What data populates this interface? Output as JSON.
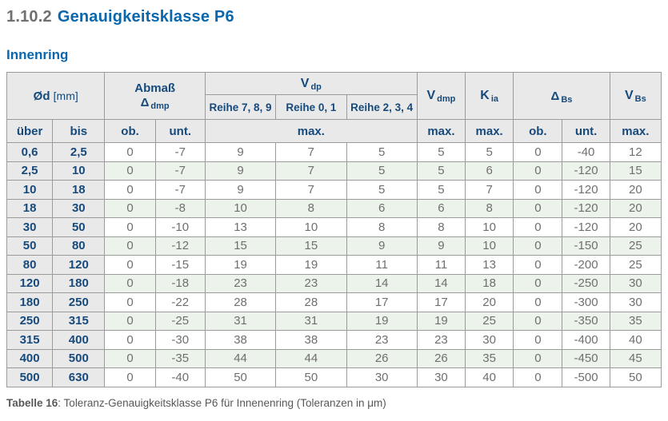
{
  "page": {
    "section_number": "1.10.2",
    "section_title": "Genauigkeitsklasse P6",
    "subtitle": "Innenring",
    "caption_label": "Tabelle 16",
    "caption_text": ": Toleranz-Genauigkeitsklasse P6 für Innenenring (Toleranzen in μm)"
  },
  "colors": {
    "title_blue": "#0a67ad",
    "table_header_blue": "#174a7c",
    "header_bg_gray": "#e9e9e9",
    "row_alt_green": "#ecf3ea",
    "data_text_gray": "#6f6f6f",
    "border_gray": "#9b9b9b",
    "section_number_gray": "#707070"
  },
  "table": {
    "headers": {
      "od": {
        "base": "Ød",
        "unit": "[mm]"
      },
      "abmass": {
        "line1": "Abmaß",
        "base": "Δ",
        "sub": "dmp"
      },
      "vdp": {
        "base": "V",
        "sub": "dp"
      },
      "reihe_789": "Reihe 7, 8, 9",
      "reihe_01": "Reihe 0, 1",
      "reihe_234": "Reihe 2, 3, 4",
      "vdmp": {
        "base": "V",
        "sub": "dmp"
      },
      "kia": {
        "base": "K",
        "sub": "ia"
      },
      "dbs": {
        "base": "Δ",
        "sub": "Bs"
      },
      "vbs": {
        "base": "V",
        "sub": "Bs"
      },
      "ueber": "über",
      "bis": "bis",
      "ob": "ob.",
      "unt": "unt.",
      "max": "max."
    },
    "rows": [
      [
        "0,6",
        "2,5",
        "0",
        "-7",
        "9",
        "7",
        "5",
        "5",
        "5",
        "0",
        "-40",
        "12"
      ],
      [
        "2,5",
        "10",
        "0",
        "-7",
        "9",
        "7",
        "5",
        "5",
        "6",
        "0",
        "-120",
        "15"
      ],
      [
        "10",
        "18",
        "0",
        "-7",
        "9",
        "7",
        "5",
        "5",
        "7",
        "0",
        "-120",
        "20"
      ],
      [
        "18",
        "30",
        "0",
        "-8",
        "10",
        "8",
        "6",
        "6",
        "8",
        "0",
        "-120",
        "20"
      ],
      [
        "30",
        "50",
        "0",
        "-10",
        "13",
        "10",
        "8",
        "8",
        "10",
        "0",
        "-120",
        "20"
      ],
      [
        "50",
        "80",
        "0",
        "-12",
        "15",
        "15",
        "9",
        "9",
        "10",
        "0",
        "-150",
        "25"
      ],
      [
        "80",
        "120",
        "0",
        "-15",
        "19",
        "19",
        "11",
        "11",
        "13",
        "0",
        "-200",
        "25"
      ],
      [
        "120",
        "180",
        "0",
        "-18",
        "23",
        "23",
        "14",
        "14",
        "18",
        "0",
        "-250",
        "30"
      ],
      [
        "180",
        "250",
        "0",
        "-22",
        "28",
        "28",
        "17",
        "17",
        "20",
        "0",
        "-300",
        "30"
      ],
      [
        "250",
        "315",
        "0",
        "-25",
        "31",
        "31",
        "19",
        "19",
        "25",
        "0",
        "-350",
        "35"
      ],
      [
        "315",
        "400",
        "0",
        "-30",
        "38",
        "38",
        "23",
        "23",
        "30",
        "0",
        "-400",
        "40"
      ],
      [
        "400",
        "500",
        "0",
        "-35",
        "44",
        "44",
        "26",
        "26",
        "35",
        "0",
        "-450",
        "45"
      ],
      [
        "500",
        "630",
        "0",
        "-40",
        "50",
        "50",
        "30",
        "30",
        "40",
        "0",
        "-500",
        "50"
      ]
    ]
  }
}
